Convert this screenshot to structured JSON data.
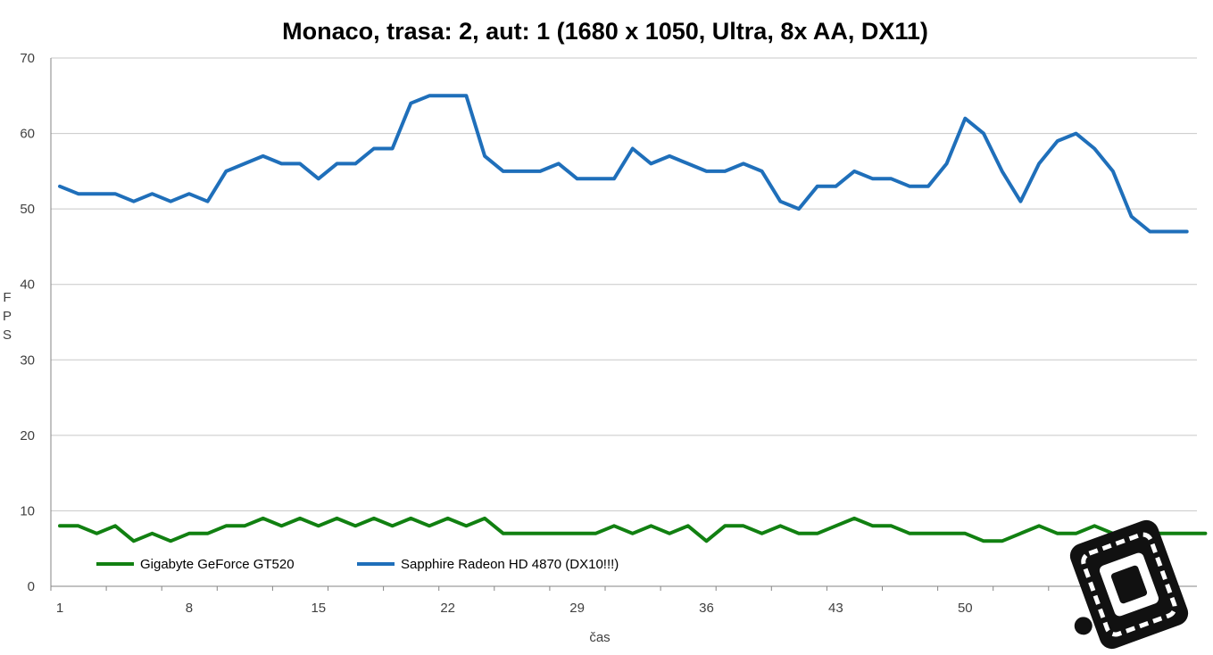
{
  "chart_data": {
    "type": "line",
    "title": "Monaco, trasa: 2, aut: 1 (1680 x 1050, Ultra, 8x AA, DX11)",
    "xlabel": "čas",
    "ylabel_chars": [
      "F",
      "P",
      "S"
    ],
    "ylim": [
      0,
      70
    ],
    "yticks": [
      0,
      10,
      20,
      30,
      40,
      50,
      60,
      70
    ],
    "xlim": [
      1,
      63
    ],
    "xticks": [
      1,
      8,
      15,
      22,
      29,
      36,
      43,
      50
    ],
    "grid": true,
    "legend_position": "bottom-left",
    "series": [
      {
        "name": "Gigabyte GeForce GT520",
        "color": "#118011",
        "values": [
          8,
          8,
          7,
          8,
          6,
          7,
          6,
          7,
          7,
          8,
          8,
          9,
          8,
          9,
          8,
          9,
          8,
          9,
          8,
          9,
          8,
          9,
          8,
          9,
          7,
          7,
          7,
          7,
          7,
          7,
          8,
          7,
          8,
          7,
          8,
          6,
          8,
          8,
          7,
          8,
          7,
          7,
          8,
          9,
          8,
          8,
          7,
          7,
          7,
          7,
          6,
          6,
          7,
          8,
          7,
          7,
          8,
          7,
          7,
          7,
          7,
          7,
          7
        ]
      },
      {
        "name": "Sapphire Radeon HD 4870 (DX10!!!)",
        "color": "#1f6fba",
        "values": [
          53,
          52,
          52,
          52,
          51,
          52,
          51,
          52,
          51,
          55,
          56,
          57,
          56,
          56,
          54,
          56,
          56,
          58,
          58,
          64,
          65,
          65,
          65,
          57,
          55,
          55,
          55,
          56,
          54,
          54,
          54,
          58,
          56,
          57,
          56,
          55,
          55,
          56,
          55,
          51,
          50,
          53,
          53,
          55,
          54,
          54,
          53,
          53,
          56,
          62,
          60,
          55,
          51,
          56,
          59,
          60,
          58,
          55,
          49,
          47,
          47,
          47
        ]
      }
    ]
  }
}
